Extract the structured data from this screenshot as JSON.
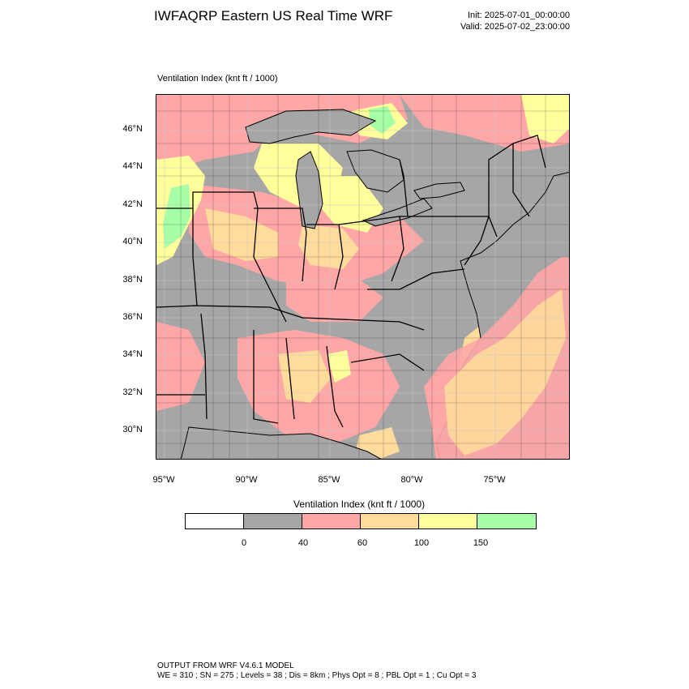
{
  "header": {
    "title": "IWFAQRP Eastern US Real Time WRF",
    "init": "Init: 2025-07-01_00:00:00",
    "valid": "Valid: 2025-07-02_23:00:00"
  },
  "field_label": "Ventilation Index   (knt ft / 1000)",
  "map": {
    "lat_labels": [
      "46°N",
      "44°N",
      "42°N",
      "40°N",
      "38°N",
      "36°N",
      "34°N",
      "32°N",
      "30°N"
    ],
    "lon_labels": [
      "95°W",
      "90°W",
      "85°W",
      "80°W",
      "75°W"
    ],
    "colors": {
      "ocean": "#a6a6a6",
      "lt_0_40": "#a6a6a6",
      "v40_60": "#ffa6a6",
      "v60_100": "#ffdc9c",
      "v100_150": "#ffff9c",
      "v150_plus": "#a6ffa6",
      "boundary": "#000000"
    }
  },
  "colorbar": {
    "title": "Ventilation Index  (knt ft / 1000)",
    "colors": [
      "#ffffff",
      "#a6a6a6",
      "#ffa6a6",
      "#ffdc9c",
      "#ffff9c",
      "#a6ffa6"
    ],
    "labels": [
      "0",
      "40",
      "60",
      "100",
      "150"
    ]
  },
  "footer": {
    "line1": "OUTPUT FROM WRF V4.6.1 MODEL",
    "line2": "WE = 310 ; SN = 275 ; Levels = 38 ; Dis = 8km ; Phys Opt = 8 ; PBL Opt = 1 ; Cu Opt = 3"
  }
}
